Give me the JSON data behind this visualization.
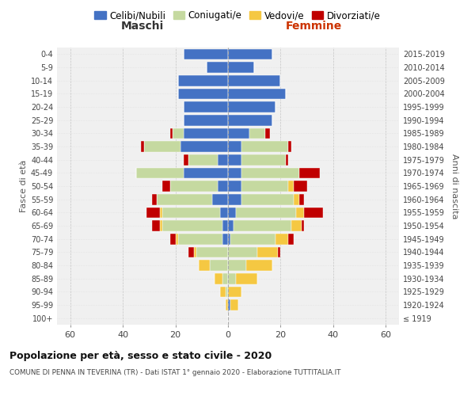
{
  "age_groups": [
    "100+",
    "95-99",
    "90-94",
    "85-89",
    "80-84",
    "75-79",
    "70-74",
    "65-69",
    "60-64",
    "55-59",
    "50-54",
    "45-49",
    "40-44",
    "35-39",
    "30-34",
    "25-29",
    "20-24",
    "15-19",
    "10-14",
    "5-9",
    "0-4"
  ],
  "birth_years": [
    "≤ 1919",
    "1920-1924",
    "1925-1929",
    "1930-1934",
    "1935-1939",
    "1940-1944",
    "1945-1949",
    "1950-1954",
    "1955-1959",
    "1960-1964",
    "1965-1969",
    "1970-1974",
    "1975-1979",
    "1980-1984",
    "1985-1989",
    "1990-1994",
    "1995-1999",
    "2000-2004",
    "2005-2009",
    "2010-2014",
    "2015-2019"
  ],
  "colors": {
    "celibi": "#4472C4",
    "coniugati": "#c5d9a0",
    "vedovi": "#f5c842",
    "divorziati": "#c00000"
  },
  "males": {
    "celibi": [
      0,
      0,
      0,
      0,
      0,
      0,
      2,
      2,
      3,
      6,
      4,
      17,
      4,
      18,
      17,
      17,
      17,
      19,
      19,
      8,
      17
    ],
    "coniugati": [
      0,
      0,
      1,
      2,
      7,
      12,
      17,
      23,
      22,
      21,
      18,
      18,
      11,
      14,
      4,
      0,
      0,
      0,
      0,
      0,
      0
    ],
    "vedovi": [
      0,
      1,
      2,
      3,
      4,
      1,
      1,
      1,
      1,
      0,
      0,
      0,
      0,
      0,
      0,
      0,
      0,
      0,
      0,
      0,
      0
    ],
    "divorziati": [
      0,
      0,
      0,
      0,
      0,
      2,
      2,
      3,
      5,
      2,
      3,
      0,
      2,
      1,
      1,
      0,
      0,
      0,
      0,
      0,
      0
    ]
  },
  "females": {
    "nubili": [
      0,
      1,
      0,
      0,
      0,
      0,
      1,
      2,
      3,
      5,
      5,
      5,
      5,
      5,
      8,
      17,
      18,
      22,
      20,
      10,
      17
    ],
    "coniugati": [
      0,
      0,
      0,
      3,
      7,
      11,
      17,
      22,
      23,
      20,
      18,
      22,
      17,
      18,
      6,
      0,
      0,
      0,
      0,
      0,
      0
    ],
    "vedovi": [
      0,
      3,
      5,
      8,
      10,
      8,
      5,
      4,
      3,
      2,
      2,
      0,
      0,
      0,
      0,
      0,
      0,
      0,
      0,
      0,
      0
    ],
    "divorziati": [
      0,
      0,
      0,
      0,
      0,
      1,
      2,
      1,
      7,
      2,
      5,
      8,
      1,
      1,
      2,
      0,
      0,
      0,
      0,
      0,
      0
    ]
  },
  "xlabel_left": "Maschi",
  "xlabel_right": "Femmine",
  "ylabel_left": "Fasce di età",
  "ylabel_right": "Anni di nascita",
  "title1": "Popolazione per età, sesso e stato civile - 2020",
  "title2": "COMUNE DI PENNA IN TEVERINA (TR) - Dati ISTAT 1° gennaio 2020 - Elaborazione TUTTITALIA.IT",
  "legend_labels": [
    "Celibi/Nubili",
    "Coniugati/e",
    "Vedovi/e",
    "Divorziati/e"
  ],
  "xlim": 65,
  "bg_color": "#f0f0f0",
  "plot_bg": "#ffffff"
}
